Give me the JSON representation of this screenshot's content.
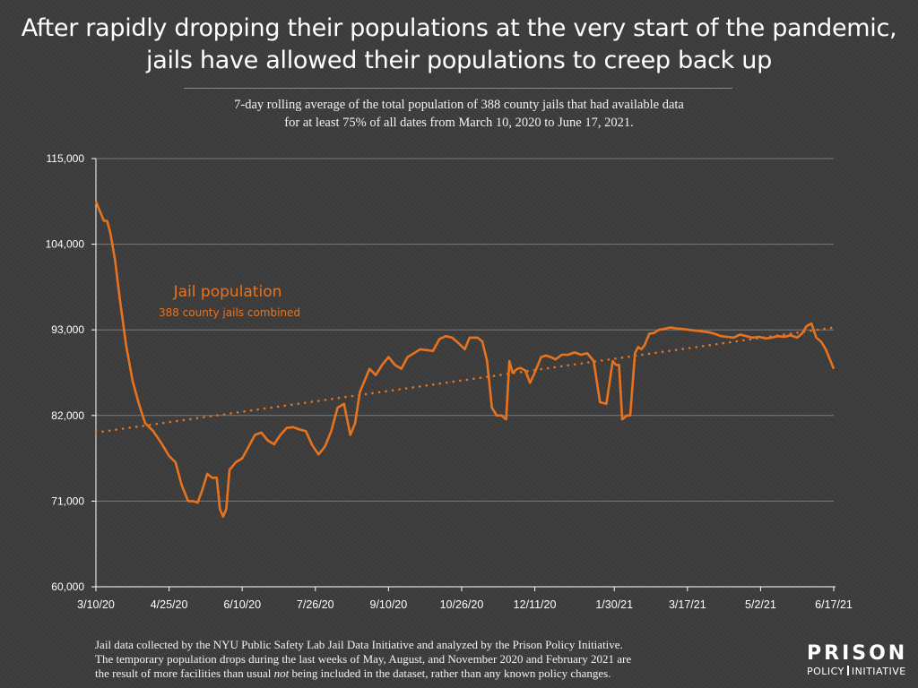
{
  "title": {
    "line1": "After rapidly dropping their populations at the very start of the pandemic,",
    "line2": "jails have allowed their populations to creep back up"
  },
  "subtitle": {
    "line1": "7-day rolling average of the total population of 388 county jails that had available data",
    "line2": "for at least 75% of all dates from March 10, 2020 to June 17, 2021."
  },
  "footer": {
    "line1": "Jail data collected by the NYU Public Safety Lab Jail Data Initiative and analyzed by the Prison Policy Initiative.",
    "line2": "The temporary population drops during the last weeks of May, August, and November 2020 and February 2021 are",
    "line3_before": "the result of more facilities than usual ",
    "line3_emph": "not",
    "line3_after": " being included in the dataset, rather than any known policy changes."
  },
  "logo": {
    "top": "PRISON",
    "bottom_left": "POLICY",
    "bottom_right": "INITIATIVE"
  },
  "colors": {
    "line": "#e8731f",
    "grid": "#7a7a7a",
    "axis": "#ffffff",
    "background": "#3c3c3c"
  },
  "chart_data": {
    "type": "line",
    "title": "After rapidly dropping their populations at the very start of the pandemic, jails have allowed their populations to creep back up",
    "annotation": {
      "label": "Jail population",
      "sublabel": "388 county jails combined"
    },
    "y_ticks": [
      60000,
      71000,
      82000,
      93000,
      104000,
      115000
    ],
    "y_tick_labels": [
      "60,000",
      "71,000",
      "82,000",
      "93,000",
      "104,000",
      "115,000"
    ],
    "ylim": [
      60000,
      115000
    ],
    "x_tick_labels": [
      "3/10/20",
      "4/25/20",
      "6/10/20",
      "7/26/20",
      "9/10/20",
      "10/26/20",
      "12/11/20",
      "1/30/21",
      "3/17/21",
      "5/2/21",
      "6/17/21"
    ],
    "x_tick_dates": [
      "2020-03-10",
      "2020-04-25",
      "2020-06-10",
      "2020-07-26",
      "2020-09-10",
      "2020-10-26",
      "2020-12-11",
      "2021-01-30",
      "2021-03-17",
      "2021-05-02",
      "2021-06-17"
    ],
    "xlim": [
      "2020-03-10",
      "2021-06-17"
    ],
    "grid": "horizontal",
    "series": [
      {
        "style": "solid",
        "x": [
          "2020-03-10",
          "2020-03-12",
          "2020-03-15",
          "2020-03-17",
          "2020-03-19",
          "2020-03-22",
          "2020-03-25",
          "2020-03-29",
          "2020-04-02",
          "2020-04-06",
          "2020-04-10",
          "2020-04-15",
          "2020-04-20",
          "2020-04-25",
          "2020-04-29",
          "2020-05-03",
          "2020-05-07",
          "2020-05-10",
          "2020-05-13",
          "2020-05-16",
          "2020-05-19",
          "2020-05-22",
          "2020-05-25",
          "2020-05-27",
          "2020-05-29",
          "2020-05-31",
          "2020-06-02",
          "2020-06-04",
          "2020-06-06",
          "2020-06-10",
          "2020-06-14",
          "2020-06-18",
          "2020-06-22",
          "2020-06-26",
          "2020-06-30",
          "2020-07-04",
          "2020-07-08",
          "2020-07-12",
          "2020-07-16",
          "2020-07-20",
          "2020-07-24",
          "2020-07-28",
          "2020-08-01",
          "2020-08-05",
          "2020-08-09",
          "2020-08-13",
          "2020-08-17",
          "2020-08-20",
          "2020-08-23",
          "2020-08-26",
          "2020-08-29",
          "2020-09-02",
          "2020-09-06",
          "2020-09-10",
          "2020-09-14",
          "2020-09-18",
          "2020-09-22",
          "2020-09-26",
          "2020-09-30",
          "2020-10-04",
          "2020-10-08",
          "2020-10-12",
          "2020-10-16",
          "2020-10-20",
          "2020-10-24",
          "2020-10-28",
          "2020-10-31",
          "2020-11-02",
          "2020-11-05",
          "2020-11-08",
          "2020-11-11",
          "2020-11-14",
          "2020-11-17",
          "2020-11-20",
          "2020-11-23",
          "2020-11-25",
          "2020-11-27",
          "2020-11-30",
          "2020-12-02",
          "2020-12-05",
          "2020-12-08",
          "2020-12-11",
          "2020-12-15",
          "2020-12-18",
          "2020-12-21",
          "2020-12-24",
          "2020-12-28",
          "2021-01-01",
          "2021-01-05",
          "2021-01-09",
          "2021-01-13",
          "2021-01-17",
          "2021-01-21",
          "2021-01-25",
          "2021-01-29",
          "2021-01-31",
          "2021-02-02",
          "2021-02-04",
          "2021-02-07",
          "2021-02-09",
          "2021-02-12",
          "2021-02-14",
          "2021-02-16",
          "2021-02-18",
          "2021-02-21",
          "2021-02-24",
          "2021-02-27",
          "2021-03-02",
          "2021-03-06",
          "2021-03-10",
          "2021-03-14",
          "2021-03-18",
          "2021-03-22",
          "2021-03-26",
          "2021-03-30",
          "2021-04-03",
          "2021-04-07",
          "2021-04-11",
          "2021-04-15",
          "2021-04-19",
          "2021-04-23",
          "2021-04-27",
          "2021-05-01",
          "2021-05-05",
          "2021-05-09",
          "2021-05-13",
          "2021-05-17",
          "2021-05-21",
          "2021-05-25",
          "2021-05-28",
          "2021-05-31",
          "2021-06-03",
          "2021-06-06",
          "2021-06-09",
          "2021-06-12",
          "2021-06-14",
          "2021-06-17"
        ],
        "values": [
          109500,
          108500,
          107000,
          107000,
          105500,
          102000,
          97000,
          91000,
          86500,
          83500,
          81000,
          80000,
          78500,
          76800,
          76000,
          73000,
          71000,
          71000,
          70800,
          72500,
          74500,
          74000,
          74000,
          70000,
          69000,
          70000,
          75000,
          75500,
          76000,
          76500,
          78000,
          79500,
          79800,
          78800,
          78300,
          79500,
          80400,
          80500,
          80200,
          80000,
          78200,
          77000,
          78000,
          80000,
          83000,
          83500,
          79500,
          81000,
          85000,
          86500,
          88000,
          87200,
          88500,
          89500,
          88500,
          88000,
          89500,
          90000,
          90500,
          90400,
          90300,
          91800,
          92200,
          92000,
          91300,
          90500,
          92000,
          92000,
          92000,
          91500,
          89000,
          83000,
          82000,
          82000,
          81500,
          89000,
          87500,
          88000,
          88100,
          87800,
          86200,
          87500,
          89500,
          89700,
          89500,
          89200,
          89800,
          89800,
          90100,
          89800,
          90000,
          89000,
          83700,
          83500,
          89000,
          88500,
          88500,
          81500,
          82000,
          82000,
          90000,
          90800,
          90500,
          91000,
          92500,
          92600,
          93000,
          93100,
          93300,
          93200,
          93100,
          93000,
          92900,
          92800,
          92700,
          92500,
          92200,
          92100,
          92000,
          92400,
          92200,
          92000,
          92100,
          91900,
          92000,
          92200,
          92100,
          92300,
          92000,
          92500,
          93500,
          93800,
          92000,
          91500,
          90500,
          89500,
          88000
        ],
        "gap_note": ""
      },
      {
        "style": "dotted",
        "x": [
          "2020-03-10",
          "2021-06-17"
        ],
        "values": [
          79800,
          93300
        ]
      }
    ]
  }
}
